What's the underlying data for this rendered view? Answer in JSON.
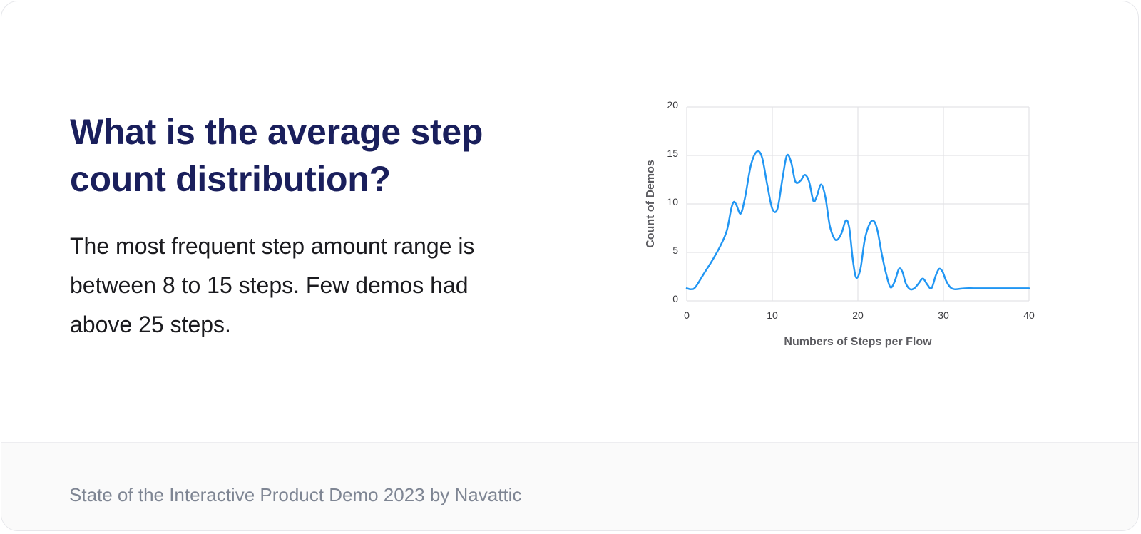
{
  "card": {
    "title": "What is the average step count distribution?",
    "description": "The most frequent step amount range is between 8 to 15 steps. Few demos had above 25 steps.",
    "footer": "State of the Interactive Product Demo 2023 by Navattic"
  },
  "colors": {
    "title": "#1a1f5c",
    "line": "#2196f3",
    "grid": "#e3e3e6"
  },
  "chart_data": {
    "type": "line",
    "title": "",
    "xlabel": "Numbers of Steps per Flow",
    "ylabel": "Count of Demos",
    "xlim": [
      0,
      40
    ],
    "ylim": [
      0,
      20
    ],
    "xticks": [
      0,
      10,
      20,
      30,
      40
    ],
    "yticks": [
      0,
      5,
      10,
      15,
      20
    ],
    "grid": true,
    "legend": "none",
    "series": [
      {
        "x": [
          0,
          0.5,
          1,
          2,
          3,
          4,
          4.7,
          5.2,
          5.5,
          5.8,
          6.3,
          6.8,
          7.5,
          8.2,
          8.8,
          9.4,
          10,
          10.6,
          11.2,
          11.7,
          12.2,
          12.7,
          13.3,
          13.8,
          14.3,
          14.8,
          15.2,
          15.7,
          16.2,
          16.7,
          17.2,
          17.6,
          18.1,
          18.6,
          19,
          19.4,
          19.8,
          20.3,
          20.8,
          21.4,
          21.9,
          22.3,
          22.8,
          23.3,
          23.8,
          24.3,
          24.8,
          25.2,
          25.6,
          26.1,
          26.6,
          27.1,
          27.6,
          28.1,
          28.6,
          29.1,
          29.5,
          29.9,
          30.3,
          30.8,
          31.3,
          32,
          32.7,
          33.5,
          34.5,
          36,
          38,
          40
        ],
        "y": [
          1.3,
          1.2,
          1.4,
          2.8,
          4.2,
          5.8,
          7.3,
          9.5,
          10.2,
          9.9,
          9.0,
          10.6,
          14.0,
          15.4,
          14.8,
          12.0,
          9.5,
          9.5,
          12.7,
          15.0,
          14.3,
          12.3,
          12.4,
          13.0,
          12.3,
          10.3,
          10.8,
          12.0,
          10.7,
          7.8,
          6.5,
          6.3,
          7.0,
          8.3,
          7.5,
          4.3,
          2.4,
          3.3,
          6.3,
          8.0,
          8.2,
          7.2,
          4.8,
          2.8,
          1.4,
          2.0,
          3.3,
          3.0,
          1.8,
          1.2,
          1.3,
          1.8,
          2.3,
          1.7,
          1.3,
          2.6,
          3.3,
          3.0,
          2.1,
          1.4,
          1.2,
          1.25,
          1.3,
          1.3,
          1.3,
          1.3,
          1.3,
          1.3
        ]
      }
    ]
  }
}
